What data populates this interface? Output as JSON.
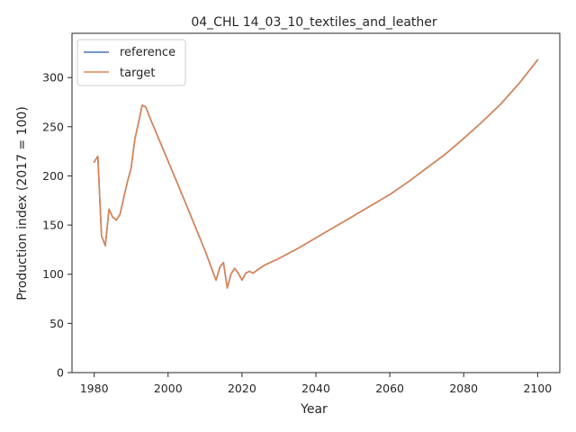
{
  "chart_data": {
    "type": "line",
    "title": "04_CHL 14_03_10_textiles_and_leather",
    "xlabel": "Year",
    "ylabel": "Production index (2017 = 100)",
    "xlim": [
      1974,
      2106
    ],
    "ylim": [
      0,
      345
    ],
    "xticks": [
      1980,
      2000,
      2020,
      2040,
      2060,
      2080,
      2100
    ],
    "yticks": [
      0,
      50,
      100,
      150,
      200,
      250,
      300
    ],
    "grid": false,
    "legend_position": "top-left",
    "series": [
      {
        "name": "reference",
        "color": "#4c72b0",
        "x": [
          1980,
          1981,
          1982,
          1983,
          1984,
          1985,
          1986,
          1987,
          1988,
          1989,
          1990,
          1991,
          1992,
          1993,
          1994,
          1995,
          2000,
          2005,
          2010,
          2013,
          2014,
          2015,
          2016,
          2017,
          2018,
          2019,
          2020,
          2021,
          2022,
          2023,
          2024,
          2026,
          2030,
          2035,
          2040,
          2045,
          2050,
          2055,
          2060,
          2065,
          2070,
          2075,
          2080,
          2085,
          2090,
          2095,
          2100
        ],
        "y": [
          214,
          220,
          139,
          129,
          166,
          158,
          155,
          161,
          178,
          194,
          208,
          237,
          254,
          272,
          270,
          260,
          215,
          170,
          124,
          94,
          107,
          112,
          86,
          100,
          106,
          101,
          94,
          101,
          103,
          101,
          104,
          109,
          116,
          126,
          137,
          148,
          159,
          170,
          181,
          194,
          208,
          222,
          238,
          255,
          273,
          294,
          318
        ]
      },
      {
        "name": "target",
        "color": "#dd8452",
        "x": [
          1980,
          1981,
          1982,
          1983,
          1984,
          1985,
          1986,
          1987,
          1988,
          1989,
          1990,
          1991,
          1992,
          1993,
          1994,
          1995,
          2000,
          2005,
          2010,
          2013,
          2014,
          2015,
          2016,
          2017,
          2018,
          2019,
          2020,
          2021,
          2022,
          2023,
          2024,
          2026,
          2030,
          2035,
          2040,
          2045,
          2050,
          2055,
          2060,
          2065,
          2070,
          2075,
          2080,
          2085,
          2090,
          2095,
          2100
        ],
        "y": [
          214,
          220,
          139,
          129,
          166,
          158,
          155,
          161,
          178,
          194,
          208,
          237,
          254,
          272,
          270,
          260,
          215,
          170,
          124,
          94,
          107,
          112,
          86,
          100,
          106,
          101,
          94,
          101,
          103,
          101,
          104,
          109,
          116,
          126,
          137,
          148,
          159,
          170,
          181,
          194,
          208,
          222,
          238,
          255,
          273,
          294,
          318
        ]
      }
    ]
  }
}
